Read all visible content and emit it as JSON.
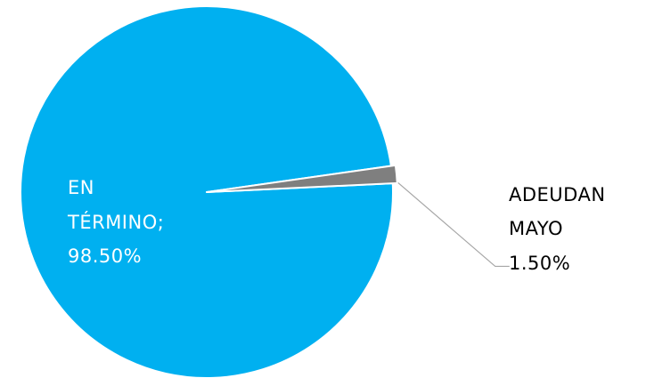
{
  "chart_data": {
    "type": "pie",
    "slices": [
      {
        "label_lines": [
          "EN",
          "TÉRMINO;",
          "98.50%"
        ],
        "value": 98.5,
        "color": "#00b0f0",
        "label_color": "#ffffff"
      },
      {
        "label_lines": [
          "ADEUDAN",
          "MAYO",
          "1.50%"
        ],
        "value": 1.5,
        "color": "#7f7f7f",
        "label_color": "#000000"
      }
    ]
  },
  "colors": {
    "background": "#ffffff",
    "separator": "#ffffff",
    "leader_line": "#a6a6a6"
  }
}
